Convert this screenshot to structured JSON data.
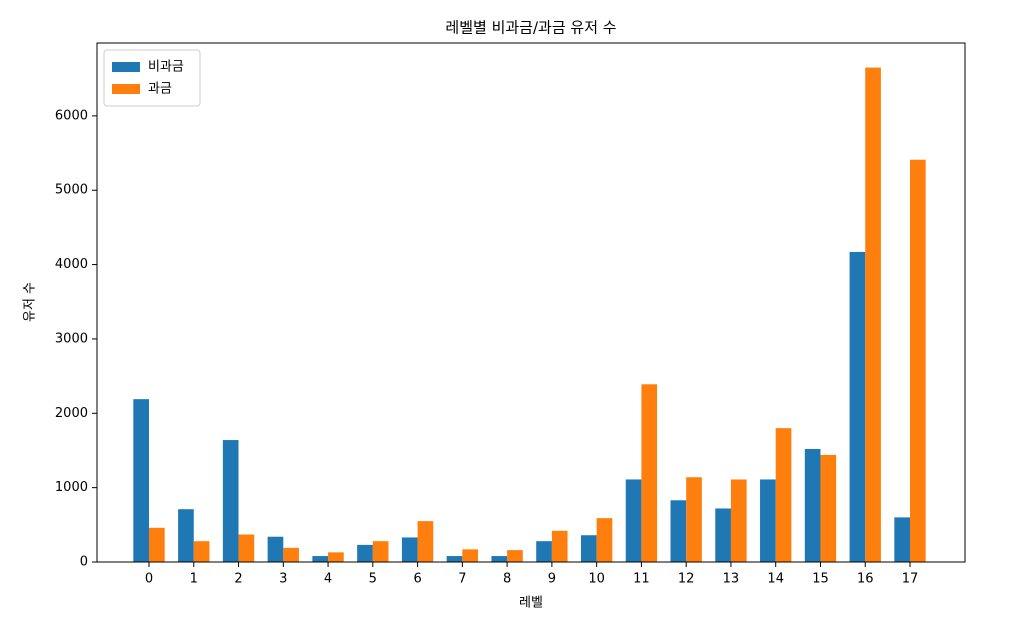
{
  "chart_data": {
    "type": "bar",
    "title": "레벨별 비과금/과금 유저 수",
    "x_label": "레벨",
    "y_label": "유저 수",
    "categories": [
      "0",
      "1",
      "2",
      "3",
      "4",
      "5",
      "6",
      "7",
      "8",
      "9",
      "10",
      "11",
      "12",
      "13",
      "14",
      "15",
      "16",
      "17"
    ],
    "series": [
      {
        "name": "비과금",
        "color": "#1f77b4",
        "values": [
          2190,
          710,
          1640,
          340,
          80,
          230,
          330,
          80,
          80,
          280,
          360,
          1110,
          830,
          720,
          1110,
          1520,
          4170,
          600
        ]
      },
      {
        "name": "과금",
        "color": "#ff7f0e",
        "values": [
          460,
          280,
          370,
          190,
          130,
          280,
          550,
          170,
          160,
          420,
          590,
          2390,
          1140,
          1110,
          1800,
          1440,
          6650,
          5410
        ]
      }
    ],
    "ylim": [
      0,
      6980
    ],
    "yticks": [
      0,
      1000,
      2000,
      3000,
      4000,
      5000,
      6000
    ],
    "grid": false,
    "legend": "upper left"
  }
}
